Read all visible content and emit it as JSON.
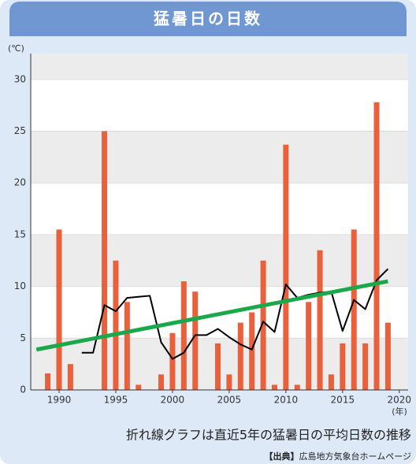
{
  "chart_data": {
    "type": "bar",
    "title": "猛暑日の日数",
    "y_label": "(℃)",
    "x_label": "(年)",
    "caption": "折れ線グラフは直近5年の猛暑日の平均日数の推移",
    "source_label": "【出典】",
    "source": "広島地方気象台ホームページ",
    "x": [
      1989,
      1990,
      1991,
      1992,
      1993,
      1994,
      1995,
      1996,
      1997,
      1998,
      1999,
      2000,
      2001,
      2002,
      2003,
      2004,
      2005,
      2006,
      2007,
      2008,
      2009,
      2010,
      2011,
      2012,
      2013,
      2014,
      2015,
      2016,
      2017,
      2018,
      2019
    ],
    "series": [
      {
        "type": "bar",
        "color": "#e8603c",
        "values": [
          1.6,
          15.5,
          2.5,
          null,
          null,
          25,
          12.5,
          8.5,
          0.5,
          null,
          1.5,
          5.5,
          10.5,
          9.5,
          null,
          4.5,
          1.5,
          6.5,
          7.5,
          12.5,
          0.5,
          23.7,
          0.5,
          8.5,
          13.5,
          1.5,
          4.5,
          15.5,
          4.5,
          27.8,
          6.5
        ]
      },
      {
        "type": "line",
        "color": "#000000",
        "values": [
          null,
          null,
          null,
          3.6,
          3.6,
          8.2,
          7.6,
          8.9,
          9.0,
          9.1,
          4.6,
          3.0,
          3.6,
          5.3,
          5.3,
          5.9,
          5.1,
          4.4,
          3.9,
          6.6,
          5.6,
          10.2,
          8.9,
          9.2,
          9.4,
          9.5,
          5.7,
          8.7,
          7.8,
          10.6,
          11.7
        ]
      },
      {
        "type": "line",
        "color": "#1aa84a",
        "x": [
          1988,
          2019
        ],
        "values": [
          3.9,
          10.5
        ]
      }
    ],
    "xlim": [
      1987.5,
      2020.5
    ],
    "xticks": [
      1990,
      1995,
      2000,
      2005,
      2010,
      2015,
      2020
    ],
    "ylim": [
      0,
      32.5
    ],
    "yticks": [
      0,
      5,
      10,
      15,
      20,
      25,
      30
    ],
    "grid": true
  }
}
